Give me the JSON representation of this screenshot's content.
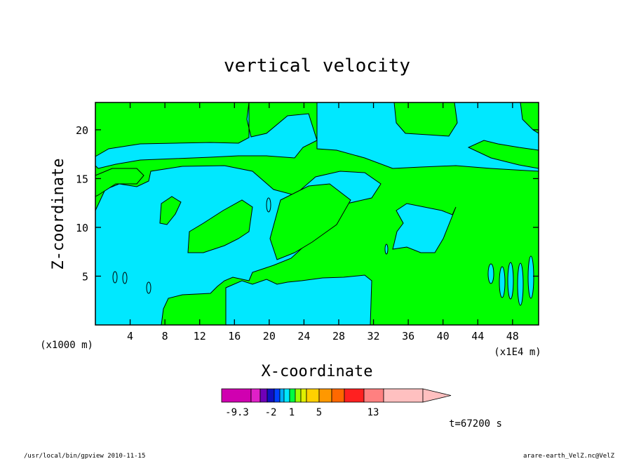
{
  "chart_data": {
    "type": "heatmap",
    "title": "vertical velocity",
    "xlabel": "X-coordinate",
    "ylabel": "Z-coordinate",
    "x_range": [
      0,
      51
    ],
    "y_range": [
      0,
      22.8
    ],
    "x_unit_left": "(x1000 m)",
    "x_unit_right": "(x1E4 m)",
    "x_ticks": [
      4,
      8,
      12,
      16,
      20,
      24,
      28,
      32,
      36,
      40,
      44,
      48
    ],
    "x_tick_labels": [
      "4",
      "8",
      "12",
      "16",
      "20",
      "24",
      "28",
      "32",
      "36",
      "40",
      "44",
      "48"
    ],
    "y_ticks": [
      5,
      10,
      15,
      20
    ],
    "y_tick_labels": [
      "5",
      "10",
      "15",
      "20"
    ],
    "field_colors": {
      "positive": "#00ff00",
      "negative": "#00e8ff"
    },
    "colorbar": {
      "colors": [
        "#d000b0",
        "#e020c8",
        "#7000b8",
        "#1010c0",
        "#0040ff",
        "#00b0ff",
        "#00e8ff",
        "#00ff40",
        "#a0ff00",
        "#e0f000",
        "#ffd000",
        "#ff9800",
        "#ff6800",
        "#ff2020",
        "#ff8080",
        "#ffc0c0"
      ],
      "labels": [
        "-9.3",
        "-2",
        "1",
        "5",
        "13"
      ],
      "extend": "right"
    },
    "annotation": "t=67200 s"
  },
  "footer": {
    "left": "/usr/local/bin/gpview  2010-11-15",
    "right": "arare-earth_VelZ.nc@VelZ"
  }
}
